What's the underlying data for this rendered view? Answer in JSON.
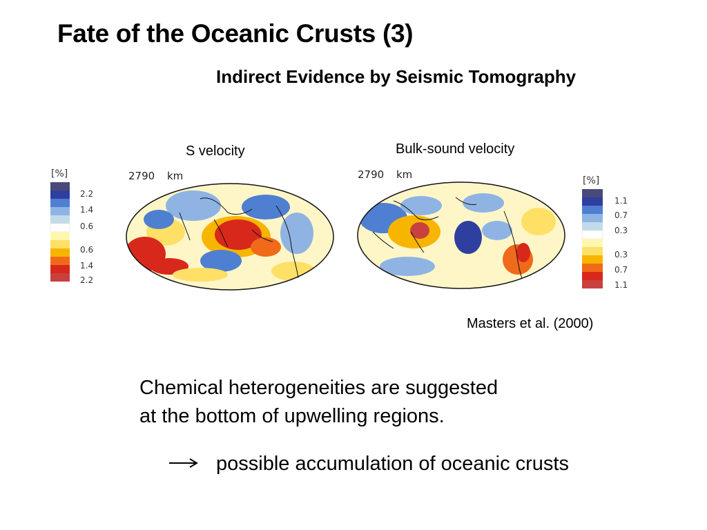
{
  "slide": {
    "title": "Fate of the Oceanic Crusts (3)",
    "subtitle": "Indirect Evidence by Seismic Tomography",
    "citation": "Masters et al. (2000)",
    "body_lines": [
      "Chemical heterogeneities are suggested",
      "at the bottom of upwelling regions."
    ],
    "conclusion": "possible accumulation of oceanic crusts",
    "arrow_icon": "right-arrow-icon"
  },
  "maps": [
    {
      "label": "S velocity",
      "depth_label": "2790",
      "depth_unit": "km",
      "scale_unit": "[%]",
      "scale_ticks": [
        "2.2",
        "1.4",
        "0.6",
        "0.6",
        "1.4",
        "2.2"
      ]
    },
    {
      "label": "Bulk-sound velocity",
      "depth_label": "2790",
      "depth_unit": "km",
      "scale_unit": "[%]",
      "scale_ticks": [
        "1.1",
        "0.7",
        "0.3",
        "0.3",
        "0.7",
        "1.1"
      ]
    }
  ],
  "colors": {
    "scale": [
      "#4a4a7a",
      "#2f3fa0",
      "#4f7fd0",
      "#8fb4e4",
      "#c3dbe8",
      "#ffffff",
      "#fff7b0",
      "#ffe066",
      "#f7b500",
      "#f06a1a",
      "#d8281c",
      "#c84040"
    ],
    "map_background": "#fff6c8"
  }
}
